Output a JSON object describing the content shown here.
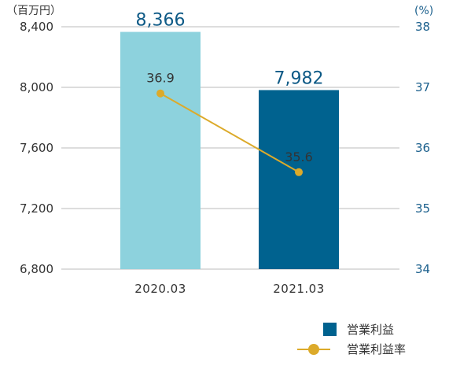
{
  "chart_data": {
    "type": "bar",
    "categories": [
      "2020.03",
      "2021.03"
    ],
    "series": [
      {
        "name": "営業利益",
        "type": "bar",
        "axis": "left",
        "values": [
          8366,
          7982
        ],
        "value_labels": [
          "8,366",
          "7,982"
        ],
        "colors": [
          "#8dd2dd",
          "#00628f"
        ]
      },
      {
        "name": "営業利益率",
        "type": "line",
        "axis": "right",
        "values": [
          36.9,
          35.6
        ],
        "value_labels": [
          "36.9",
          "35.6"
        ],
        "color": "#dcaa2a"
      }
    ],
    "y_left": {
      "unit_label": "（百万円）",
      "ylim": [
        6800,
        8400
      ],
      "ticks": [
        "6,800",
        "7,200",
        "7,600",
        "8,000",
        "8,400"
      ],
      "tick_values": [
        6800,
        7200,
        7600,
        8000,
        8400
      ]
    },
    "y_right": {
      "unit_label": "(%)",
      "ylim": [
        34,
        38
      ],
      "ticks": [
        "34",
        "35",
        "36",
        "37",
        "38"
      ],
      "tick_values": [
        34,
        35,
        36,
        37,
        38
      ]
    },
    "grid": true,
    "legend_position": "bottom-right"
  }
}
